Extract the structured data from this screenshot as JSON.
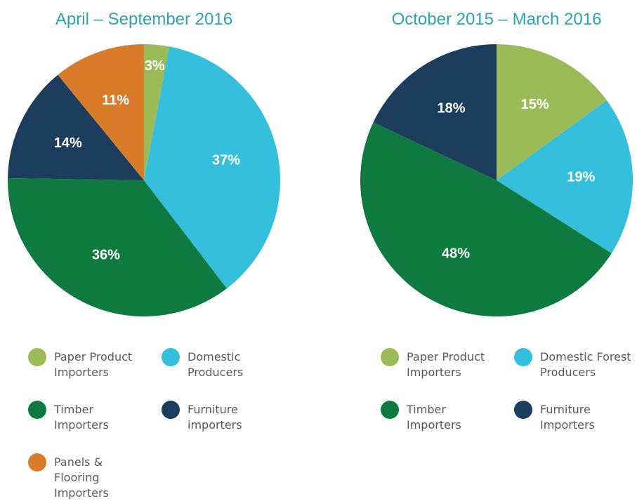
{
  "chart_data": [
    {
      "type": "pie",
      "title": "April – September 2016",
      "categories": [
        "Paper Product Importers",
        "Domestic Producers",
        "Timber Importers",
        "Furniture importers",
        "Panels & Flooring Importers"
      ],
      "values": [
        3,
        37,
        36,
        14,
        11
      ],
      "value_labels": [
        "3%",
        "37%",
        "36%",
        "14%",
        "11%"
      ],
      "colors": [
        "#9bbb59",
        "#34bfdc",
        "#0f7a3f",
        "#1d3d5f",
        "#d97b29"
      ]
    },
    {
      "type": "pie",
      "title": "October 2015 – March 2016",
      "categories": [
        "Paper Product Importers",
        "Domestic Forest Producers",
        "Timber Importers",
        "Furniture Importers"
      ],
      "values": [
        15,
        19,
        48,
        18
      ],
      "value_labels": [
        "15%",
        "19%",
        "48%",
        "18%"
      ],
      "colors": [
        "#9bbb59",
        "#34bfdc",
        "#0f7a3f",
        "#1d3d5f"
      ]
    }
  ]
}
